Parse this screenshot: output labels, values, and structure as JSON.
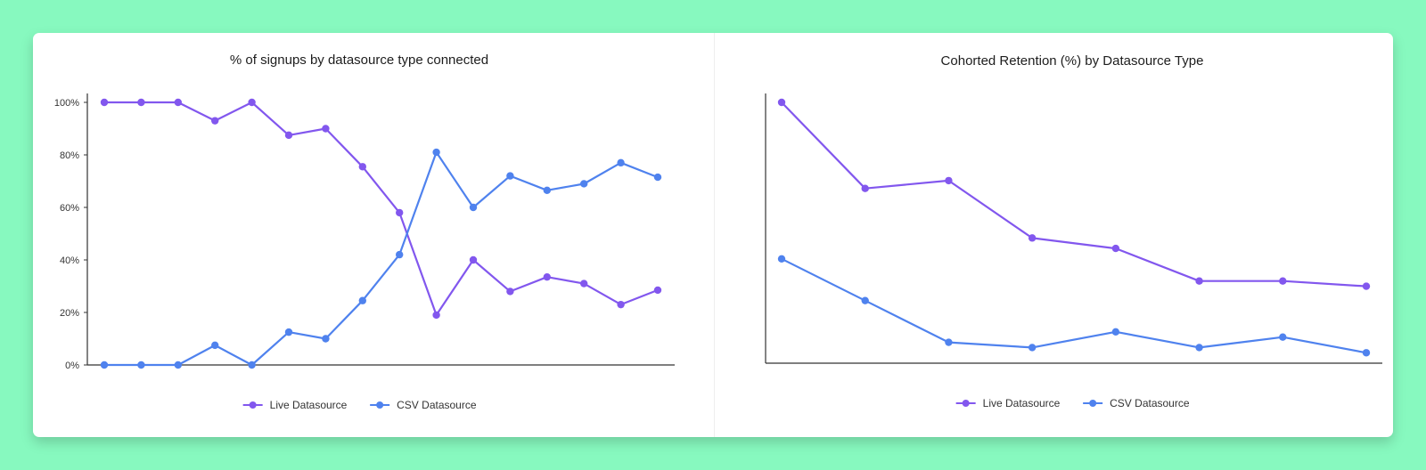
{
  "colors": {
    "background": "#87f9bf",
    "card": "#ffffff",
    "live": "#8257ee",
    "csv": "#4f82ee",
    "axis": "#333333"
  },
  "chart_data": [
    {
      "type": "line",
      "title": "% of signups by datasource type connected",
      "xlabel": "",
      "ylabel": "",
      "ylim": [
        0,
        100
      ],
      "y_ticks": [
        0,
        20,
        40,
        60,
        80,
        100
      ],
      "y_tick_labels": [
        "0%",
        "20%",
        "40%",
        "60%",
        "80%",
        "100%"
      ],
      "x": [
        1,
        2,
        3,
        4,
        5,
        6,
        7,
        8,
        9,
        10,
        11,
        12,
        13,
        14,
        15,
        16
      ],
      "grid": false,
      "legend_position": "bottom-center",
      "series": [
        {
          "name": "Live Datasource",
          "color": "#8257ee",
          "values": [
            100,
            100,
            100,
            93,
            100,
            87.5,
            90,
            75.5,
            58,
            19,
            40,
            28,
            33.5,
            31,
            23,
            28.5
          ]
        },
        {
          "name": "CSV Datasource",
          "color": "#4f82ee",
          "values": [
            0,
            0,
            0,
            7.5,
            0,
            12.5,
            10,
            24.5,
            42,
            81,
            60,
            72,
            66.5,
            69,
            77,
            71.5
          ]
        }
      ]
    },
    {
      "type": "line",
      "title": "Cohorted Retention (%) by Datasource Type",
      "xlabel": "",
      "ylabel": "",
      "ylim": [
        0,
        100
      ],
      "y_ticks": [],
      "y_tick_labels": [],
      "x": [
        1,
        2,
        3,
        4,
        5,
        6,
        7,
        8
      ],
      "grid": false,
      "legend_position": "bottom-center",
      "series": [
        {
          "name": "Live Datasource",
          "color": "#8257ee",
          "values": [
            100,
            67,
            70,
            48,
            44,
            31.5,
            31.5,
            29.5
          ]
        },
        {
          "name": "CSV Datasource",
          "color": "#4f82ee",
          "values": [
            40,
            24,
            8,
            6,
            12,
            6,
            10,
            4
          ]
        }
      ]
    }
  ]
}
